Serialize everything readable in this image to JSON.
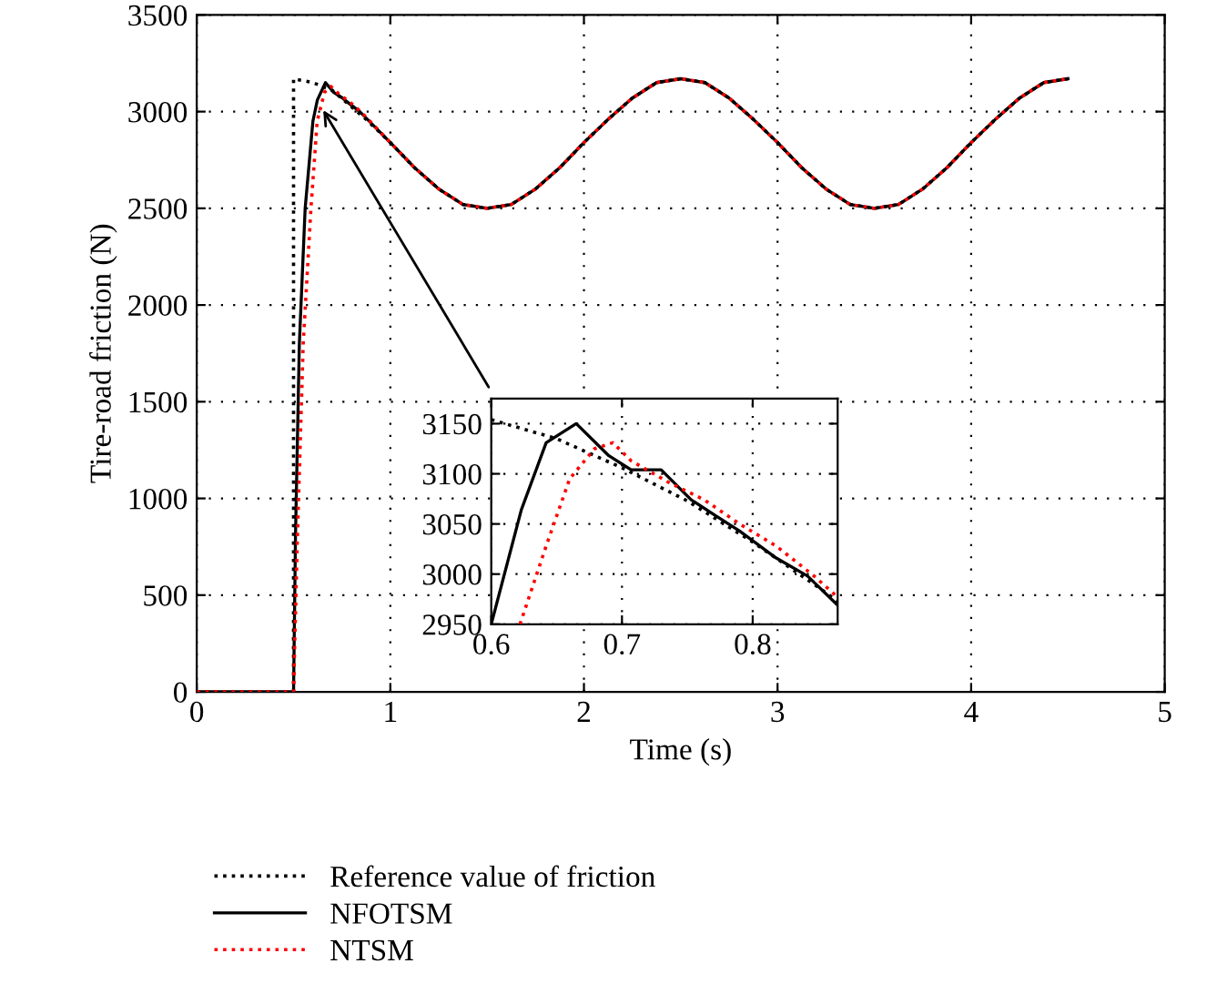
{
  "chart_data": [
    {
      "type": "line",
      "xlabel": "Time (s)",
      "ylabel": "Tire-road friction (N)",
      "xlim": [
        0,
        5
      ],
      "ylim": [
        0,
        3500
      ],
      "xticks": [
        0,
        1,
        2,
        3,
        4,
        5
      ],
      "yticks": [
        0,
        500,
        1000,
        1500,
        2000,
        2500,
        3000,
        3500
      ],
      "grid": true,
      "legend": "bottom",
      "series": [
        {
          "name": "Reference value of friction",
          "color": "#000000",
          "line_style": "dotted",
          "x": [
            0,
            0.5,
            0.5,
            0.6,
            0.7,
            0.875,
            1.0,
            1.125,
            1.25,
            1.375,
            1.5,
            1.625,
            1.75,
            1.875,
            2.0,
            2.125,
            2.25,
            2.375,
            2.5,
            2.625,
            2.75,
            2.875,
            3.0,
            3.125,
            3.25,
            3.375,
            3.5,
            3.625,
            3.75,
            3.875,
            4.0,
            4.125,
            4.25,
            4.375,
            4.5
          ],
          "values": [
            0,
            0,
            3170,
            3150,
            3110,
            2960,
            2840,
            2710,
            2600,
            2520,
            2500,
            2520,
            2600,
            2710,
            2840,
            2960,
            3070,
            3150,
            3170,
            3150,
            3070,
            2960,
            2840,
            2710,
            2600,
            2520,
            2500,
            2520,
            2600,
            2710,
            2840,
            2960,
            3070,
            3150,
            3170
          ]
        },
        {
          "name": "NFOTSM",
          "color": "#000000",
          "line_style": "solid",
          "x": [
            0,
            0.5,
            0.51,
            0.53,
            0.56,
            0.6,
            0.623,
            0.665,
            0.707,
            0.753,
            0.79,
            0.842,
            1.0,
            1.125,
            1.25,
            1.375,
            1.5,
            1.625,
            1.75,
            1.875,
            2.0,
            2.125,
            2.25,
            2.375,
            2.5,
            2.625,
            2.75,
            2.875,
            3.0,
            3.125,
            3.25,
            3.375,
            3.5,
            3.625,
            3.75,
            3.875,
            4.0,
            4.125,
            4.25,
            4.375,
            4.5
          ],
          "values": [
            0,
            0,
            800,
            1800,
            2500,
            2950,
            3060,
            3150,
            3100,
            3070,
            3040,
            3000,
            2840,
            2710,
            2600,
            2520,
            2500,
            2520,
            2600,
            2710,
            2840,
            2960,
            3070,
            3150,
            3170,
            3150,
            3070,
            2960,
            2840,
            2710,
            2600,
            2520,
            2500,
            2520,
            2600,
            2710,
            2840,
            2960,
            3070,
            3150,
            3170
          ]
        },
        {
          "name": "NTSM",
          "color": "#ff0000",
          "line_style": "dotted",
          "x": [
            0,
            0.5,
            0.52,
            0.55,
            0.59,
            0.622,
            0.66,
            0.693,
            0.735,
            0.79,
            0.847,
            1.0,
            1.125,
            1.25,
            1.375,
            1.5,
            1.625,
            1.75,
            1.875,
            2.0,
            2.125,
            2.25,
            2.375,
            2.5,
            2.625,
            2.75,
            2.875,
            3.0,
            3.125,
            3.25,
            3.375,
            3.5,
            3.625,
            3.75,
            3.875,
            4.0,
            4.125,
            4.25,
            4.375,
            4.5
          ],
          "values": [
            0,
            0,
            800,
            1800,
            2500,
            2950,
            3100,
            3130,
            3090,
            3050,
            3000,
            2840,
            2710,
            2600,
            2520,
            2500,
            2520,
            2600,
            2710,
            2840,
            2960,
            3070,
            3150,
            3170,
            3150,
            3070,
            2960,
            2840,
            2710,
            2600,
            2520,
            2500,
            2520,
            2600,
            2710,
            2840,
            2960,
            3070,
            3150,
            3170
          ]
        }
      ]
    },
    {
      "type": "line",
      "xlim": [
        0.6,
        0.865
      ],
      "ylim": [
        2950,
        3175
      ],
      "xticks": [
        0.6,
        0.7,
        0.8
      ],
      "yticks": [
        2950,
        3000,
        3050,
        3100,
        3150
      ],
      "grid": true,
      "series": [
        {
          "color": "#000000",
          "line_style": "dotted",
          "x": [
            0.6,
            0.65,
            0.7,
            0.75,
            0.8,
            0.85,
            0.865
          ],
          "values": [
            3154,
            3135,
            3106,
            3073,
            3032,
            2987,
            2973
          ]
        },
        {
          "color": "#000000",
          "line_style": "solid",
          "x": [
            0.6,
            0.623,
            0.642,
            0.665,
            0.69,
            0.707,
            0.73,
            0.753,
            0.772,
            0.79,
            0.818,
            0.842,
            0.865
          ],
          "values": [
            2950,
            3064,
            3131,
            3150,
            3118,
            3104,
            3104,
            3074,
            3058,
            3043,
            3016,
            2998,
            2969
          ]
        },
        {
          "color": "#ff0000",
          "line_style": "dotted",
          "x": [
            0.622,
            0.642,
            0.66,
            0.679,
            0.693,
            0.707,
            0.735,
            0.763,
            0.79,
            0.818,
            0.847,
            0.865
          ],
          "values": [
            2950,
            3028,
            3095,
            3125,
            3131,
            3113,
            3092,
            3074,
            3050,
            3028,
            2998,
            2977
          ]
        }
      ]
    }
  ]
}
